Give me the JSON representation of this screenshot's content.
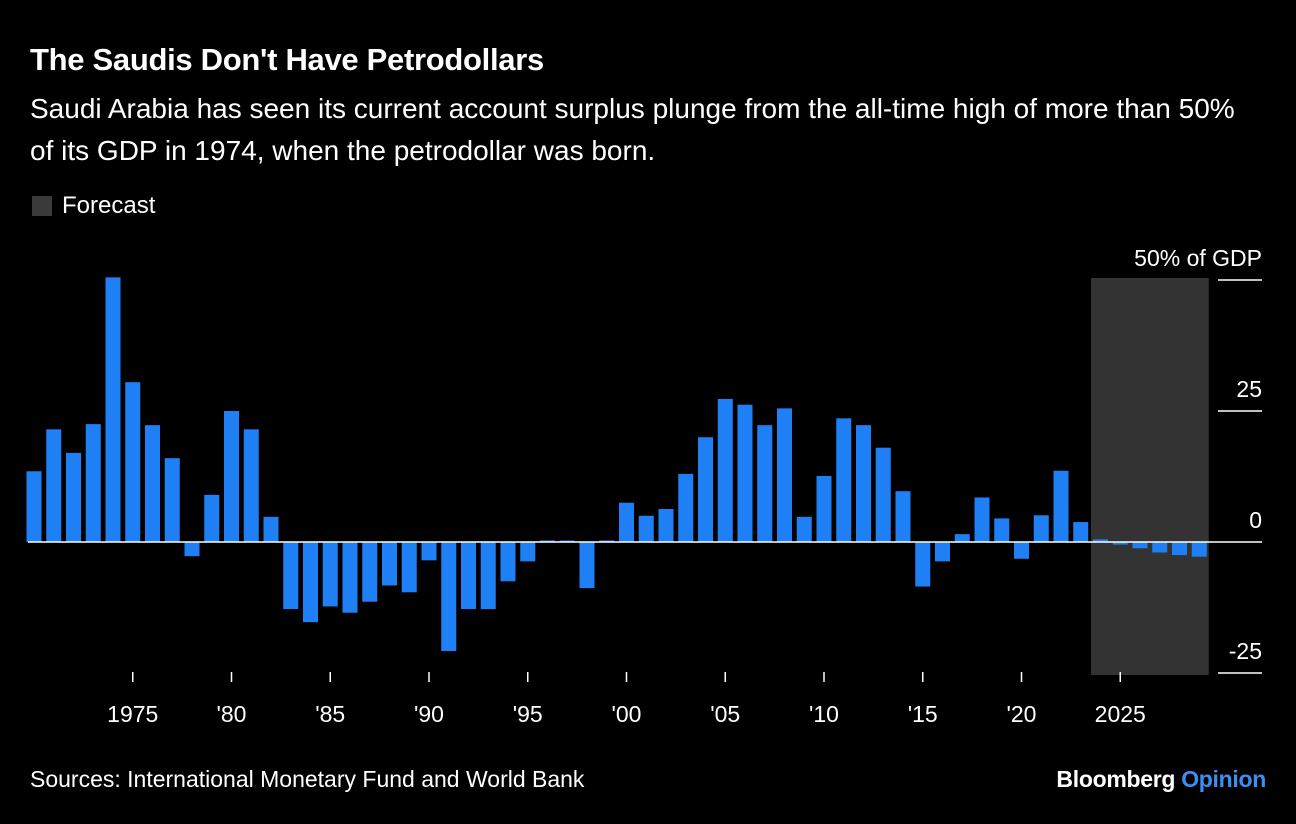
{
  "header": {
    "title": "The Saudis Don't Have Petrodollars",
    "subtitle": "Saudi Arabia has seen its current account surplus plunge from the all-time high of more than 50% of its GDP in 1974, when the petrodollar was born."
  },
  "legend": {
    "forecast_label": "Forecast",
    "forecast_color": "#333333"
  },
  "footer": {
    "source": "Sources: International Monetary Fund and World Bank",
    "brand_a": "Bloomberg",
    "brand_b": "Opinion"
  },
  "chart_data": {
    "type": "bar",
    "ylabel": "50% of GDP",
    "ylim": [
      -25,
      50
    ],
    "yticks": [
      50,
      25,
      0,
      -25
    ],
    "ytick_labels": [
      "50% of GDP",
      "25",
      "0",
      "-25"
    ],
    "xtick_years": [
      1975,
      1980,
      1985,
      1990,
      1995,
      2000,
      2005,
      2010,
      2015,
      2020,
      2025
    ],
    "xtick_labels": [
      "1975",
      "'80",
      "'85",
      "'90",
      "'95",
      "'00",
      "'05",
      "'10",
      "'15",
      "'20",
      "2025"
    ],
    "bar_color": "#1f7ff5",
    "forecast_range": [
      2024,
      2029
    ],
    "years": [
      1970,
      1971,
      1972,
      1973,
      1974,
      1975,
      1976,
      1977,
      1978,
      1979,
      1980,
      1981,
      1982,
      1983,
      1984,
      1985,
      1986,
      1987,
      1988,
      1989,
      1990,
      1991,
      1992,
      1993,
      1994,
      1995,
      1996,
      1997,
      1998,
      1999,
      2000,
      2001,
      2002,
      2003,
      2004,
      2005,
      2006,
      2007,
      2008,
      2009,
      2010,
      2011,
      2012,
      2013,
      2014,
      2015,
      2016,
      2017,
      2018,
      2019,
      2020,
      2021,
      2022,
      2023,
      2024,
      2025,
      2026,
      2027,
      2028,
      2029
    ],
    "values": [
      13.5,
      21.5,
      17,
      22.5,
      50.5,
      30.5,
      22.3,
      16,
      -2.7,
      9,
      25,
      21.5,
      4.8,
      -12.8,
      -15.3,
      -12.3,
      -13.5,
      -11.4,
      -8.3,
      -9.6,
      -3.5,
      -20.8,
      -12.8,
      -12.8,
      -7.5,
      -3.7,
      0.3,
      0.2,
      -8.8,
      0.3,
      7.5,
      5,
      6.3,
      13,
      20,
      27.3,
      26.2,
      22.3,
      25.5,
      4.8,
      12.6,
      23.6,
      22.3,
      18,
      9.7,
      -8.5,
      -3.7,
      1.5,
      8.5,
      4.5,
      -3.2,
      5.1,
      13.6,
      3.8,
      0.5,
      -0.5,
      -1.2,
      -2,
      -2.5,
      -2.8
    ]
  }
}
